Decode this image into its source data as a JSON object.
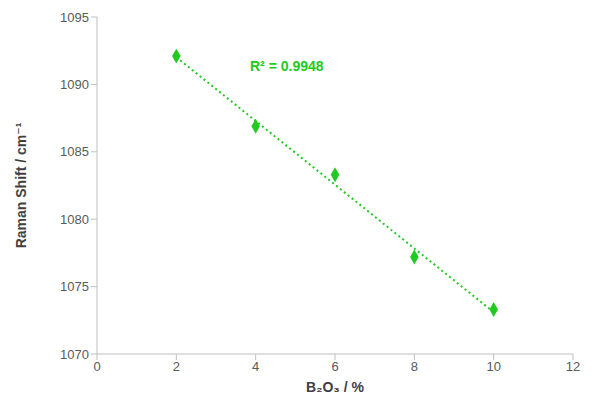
{
  "chart_data": {
    "type": "scatter",
    "x": [
      2,
      4,
      6,
      8,
      10
    ],
    "values": [
      1092.1,
      1086.9,
      1083.3,
      1077.2,
      1073.3
    ],
    "color": "#22c922",
    "marker": "diamond",
    "xlim": [
      0,
      12
    ],
    "xticks": [
      0,
      2,
      4,
      6,
      8,
      10,
      12
    ],
    "ylim": [
      1070,
      1095
    ],
    "yticks": [
      1070,
      1075,
      1080,
      1085,
      1090,
      1095
    ],
    "xlabel": "B₂O₃ / %",
    "ylabel": "Raman Shift / cm⁻¹",
    "annotation": "R² = 0.9948",
    "grid": false,
    "trendline": {
      "x": [
        2,
        10
      ],
      "values": [
        1092.02,
        1073.1
      ],
      "line_style": "dotted"
    }
  }
}
